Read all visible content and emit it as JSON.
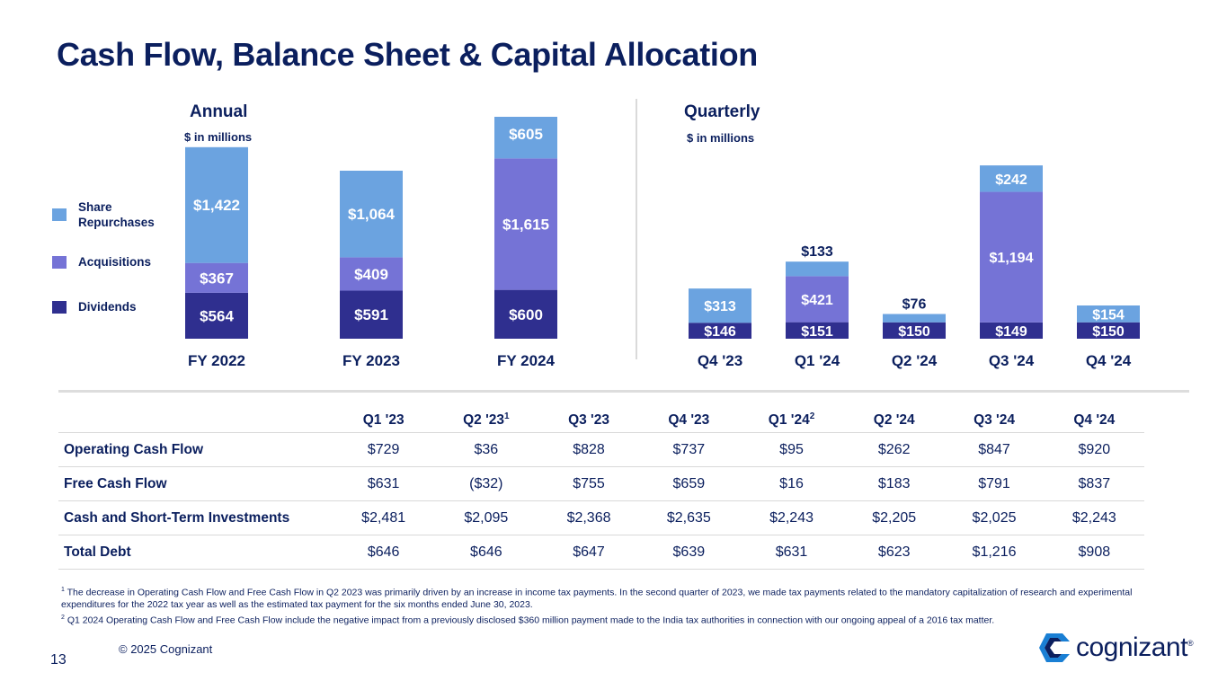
{
  "title": "Cash Flow, Balance Sheet & Capital Allocation",
  "colors": {
    "share_repurchases": "#6ba3e0",
    "acquisitions": "#7573d6",
    "dividends": "#2f2f8f",
    "navy": "#0b1f5e"
  },
  "legend": [
    {
      "label": "Share Repurchases",
      "color": "#6ba3e0"
    },
    {
      "label": "Acquisitions",
      "color": "#7573d6"
    },
    {
      "label": "Dividends",
      "color": "#2f2f8f"
    }
  ],
  "annual": {
    "title": "Annual",
    "units": "$ in millions"
  },
  "quarterly": {
    "title": "Quarterly",
    "units": "$ in millions"
  },
  "chart_data": [
    {
      "type": "bar",
      "stacked": true,
      "title": "Annual",
      "ylabel": "$ in millions",
      "categories": [
        "FY 2022",
        "FY 2023",
        "FY 2024"
      ],
      "series": [
        {
          "name": "Dividends",
          "values": [
            564,
            591,
            600
          ],
          "labels": [
            "$564",
            "$591",
            "$600"
          ]
        },
        {
          "name": "Acquisitions",
          "values": [
            367,
            409,
            1615
          ],
          "labels": [
            "$367",
            "$409",
            "$1,615"
          ]
        },
        {
          "name": "Share Repurchases",
          "values": [
            1422,
            1064,
            605
          ],
          "labels": [
            "$1,422",
            "$1,064",
            "$605"
          ]
        }
      ]
    },
    {
      "type": "bar",
      "stacked": true,
      "title": "Quarterly",
      "ylabel": "$ in millions",
      "categories": [
        "Q4 '23",
        "Q1 '24",
        "Q2 '24",
        "Q3 '24",
        "Q4 '24"
      ],
      "series": [
        {
          "name": "Dividends",
          "values": [
            146,
            151,
            150,
            149,
            150
          ],
          "labels": [
            "$146",
            "$151",
            "$150",
            "$149",
            "$150"
          ]
        },
        {
          "name": "Acquisitions",
          "values": [
            0,
            421,
            0,
            1194,
            0
          ],
          "labels": [
            "",
            "$421",
            "",
            "$1,194",
            ""
          ]
        },
        {
          "name": "Share Repurchases",
          "values": [
            313,
            133,
            76,
            242,
            154
          ],
          "labels": [
            "$313",
            "$133",
            "$76",
            "$242",
            "$154"
          ]
        }
      ]
    }
  ],
  "table": {
    "columns": [
      {
        "label": "Q1 '23",
        "sup": ""
      },
      {
        "label": "Q2 '23",
        "sup": "1"
      },
      {
        "label": "Q3 '23",
        "sup": ""
      },
      {
        "label": "Q4 '23",
        "sup": ""
      },
      {
        "label": "Q1 '24",
        "sup": "2"
      },
      {
        "label": "Q2 '24",
        "sup": ""
      },
      {
        "label": "Q3 '24",
        "sup": ""
      },
      {
        "label": "Q4 '24",
        "sup": ""
      }
    ],
    "rows": [
      {
        "label": "Operating Cash Flow",
        "values": [
          "$729",
          "$36",
          "$828",
          "$737",
          "$95",
          "$262",
          "$847",
          "$920"
        ]
      },
      {
        "label": "Free Cash Flow",
        "values": [
          "$631",
          "($32)",
          "$755",
          "$659",
          "$16",
          "$183",
          "$791",
          "$837"
        ]
      },
      {
        "label": "Cash and Short-Term Investments",
        "values": [
          "$2,481",
          "$2,095",
          "$2,368",
          "$2,635",
          "$2,243",
          "$2,205",
          "$2,025",
          "$2,243"
        ]
      },
      {
        "label": "Total Debt",
        "values": [
          "$646",
          "$646",
          "$647",
          "$639",
          "$631",
          "$623",
          "$1,216",
          "$908"
        ]
      }
    ]
  },
  "footnotes": {
    "f1_mark": "1",
    "f1": "The decrease in Operating Cash Flow and  Free Cash Flow in Q2 2023 was primarily driven by an increase in income tax payments. In the second quarter of 2023, we made tax payments related to the mandatory capitalization of research and experimental expenditures for the 2022 tax year as well as the estimated tax payment for the six months ended June 30, 2023.",
    "f2_mark": "2",
    "f2": "Q1 2024 Operating Cash Flow and Free Cash Flow include the negative impact from a previously disclosed $360 million payment made to the India tax authorities in connection with our ongoing appeal of a 2016 tax matter."
  },
  "copyright": "© 2025 Cognizant",
  "page_number": "13",
  "logo": {
    "text": "cognizant",
    "mark": "®"
  }
}
